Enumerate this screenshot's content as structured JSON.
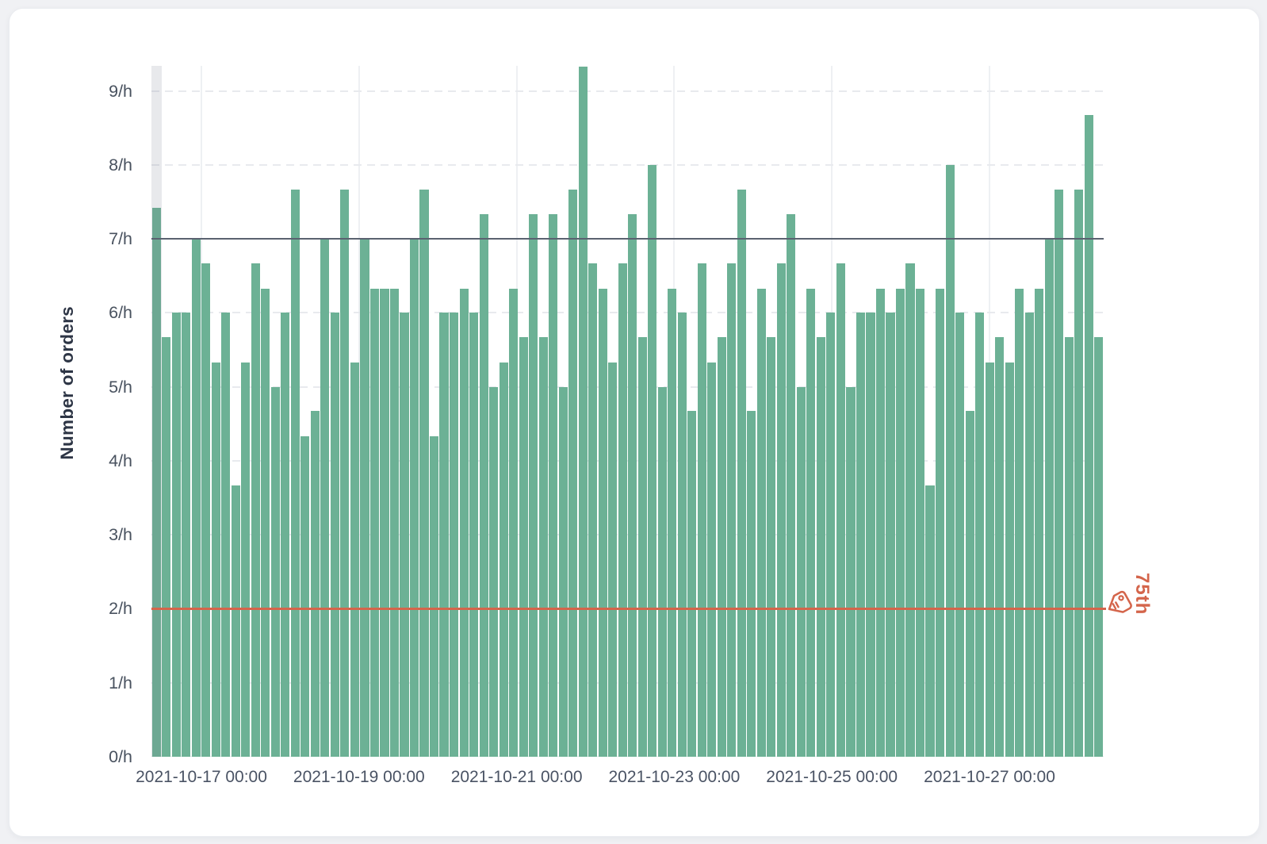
{
  "chart_data": {
    "type": "bar",
    "title": "",
    "ylabel": "Number of orders",
    "xlabel": "",
    "ylim": [
      0,
      9.33
    ],
    "grid": "horizontal-dashed and vertical-solid",
    "y_tick_labels": [
      "0/h",
      "1/h",
      "2/h",
      "3/h",
      "4/h",
      "5/h",
      "6/h",
      "7/h",
      "8/h",
      "9/h"
    ],
    "x_tick_labels": [
      "2021-10-17 00:00",
      "2021-10-19 00:00",
      "2021-10-21 00:00",
      "2021-10-23 00:00",
      "2021-10-25 00:00",
      "2021-10-27 00:00"
    ],
    "values": [
      7.42,
      5.67,
      6,
      6,
      7,
      6.67,
      5.33,
      6,
      3.67,
      5.33,
      6.67,
      6.33,
      5,
      6,
      7.67,
      4.33,
      4.67,
      7,
      6,
      7.67,
      5.33,
      7,
      6.33,
      6.33,
      6.33,
      6,
      7,
      7.67,
      4.33,
      6,
      6,
      6.33,
      6,
      7.33,
      5,
      5.33,
      6.33,
      5.67,
      7.33,
      5.67,
      7.33,
      5,
      7.67,
      9.33,
      6.67,
      6.33,
      5.33,
      6.67,
      7.33,
      5.67,
      8,
      5,
      6.33,
      6,
      4.67,
      6.67,
      5.33,
      5.67,
      6.67,
      7.67,
      4.67,
      6.33,
      5.67,
      6.67,
      7.33,
      5,
      6.33,
      5.67,
      6,
      6.67,
      5,
      6,
      6,
      6.33,
      6,
      6.33,
      6.67,
      6.33,
      3.67,
      6.33,
      8,
      6,
      4.67,
      6,
      5.33,
      5.67,
      5.33,
      6.33,
      6,
      6.33,
      7,
      7.67,
      5.67,
      7.67,
      8.67,
      5.67
    ],
    "bar_color": "#6cb195",
    "highlighted_bar_index": 0,
    "reference_lines": [
      {
        "y": 7,
        "label": "",
        "color": "#5a6270"
      },
      {
        "y": 2,
        "label": "75th",
        "color": "#d4654b",
        "icon": "tag-icon"
      }
    ]
  }
}
